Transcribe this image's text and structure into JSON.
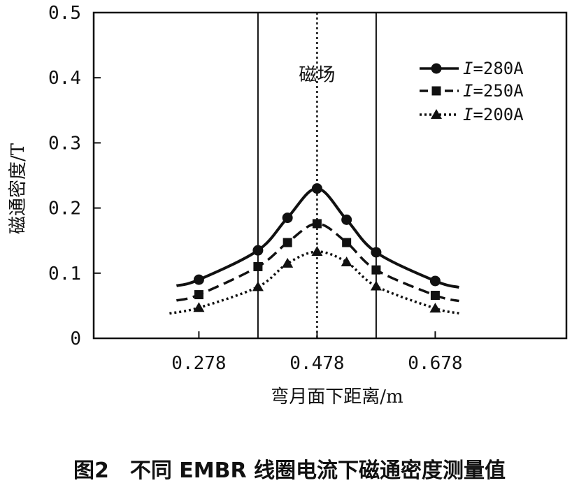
{
  "chart_data": {
    "type": "line",
    "xlabel": "弯月面下距离/m",
    "ylabel": "磁通密度/T",
    "xlim": [
      0.1,
      0.9
    ],
    "ylim": [
      0,
      0.5
    ],
    "x_ticks": [
      0.278,
      0.478,
      0.678
    ],
    "x_tick_labels": [
      "0.278",
      "0.478",
      "0.678"
    ],
    "y_ticks": [
      0,
      0.1,
      0.2,
      0.3,
      0.4,
      0.5
    ],
    "y_tick_labels": [
      "0",
      "0.1",
      "0.2",
      "0.3",
      "0.4",
      "0.5"
    ],
    "grid": false,
    "legend_position": "top-right",
    "vertical_lines": [
      {
        "x": 0.378,
        "style": "solid"
      },
      {
        "x": 0.478,
        "style": "dotted"
      },
      {
        "x": 0.578,
        "style": "solid"
      }
    ],
    "annotations": [
      {
        "text": "磁场",
        "x": 0.478,
        "y": 0.405
      }
    ],
    "series": [
      {
        "name": "I=280A",
        "marker": "circle",
        "line_style": "solid",
        "x": [
          0.278,
          0.378,
          0.428,
          0.478,
          0.528,
          0.578,
          0.678
        ],
        "y": [
          0.09,
          0.135,
          0.185,
          0.23,
          0.182,
          0.132,
          0.088
        ]
      },
      {
        "name": "I=250A",
        "marker": "square",
        "line_style": "dashed",
        "x": [
          0.278,
          0.378,
          0.428,
          0.478,
          0.528,
          0.578,
          0.678
        ],
        "y": [
          0.067,
          0.11,
          0.147,
          0.176,
          0.147,
          0.105,
          0.066
        ]
      },
      {
        "name": "I=200A",
        "marker": "triangle",
        "line_style": "dotted",
        "x": [
          0.278,
          0.378,
          0.428,
          0.478,
          0.528,
          0.578,
          0.678
        ],
        "y": [
          0.047,
          0.079,
          0.115,
          0.133,
          0.117,
          0.08,
          0.046
        ]
      }
    ]
  },
  "legend": {
    "items": [
      {
        "italic": "I",
        "rest": "=280A"
      },
      {
        "italic": "I",
        "rest": "=250A"
      },
      {
        "italic": "I",
        "rest": "=200A"
      }
    ]
  },
  "caption": "图2　不同 EMBR 线圈电流下磁通密度测量值"
}
